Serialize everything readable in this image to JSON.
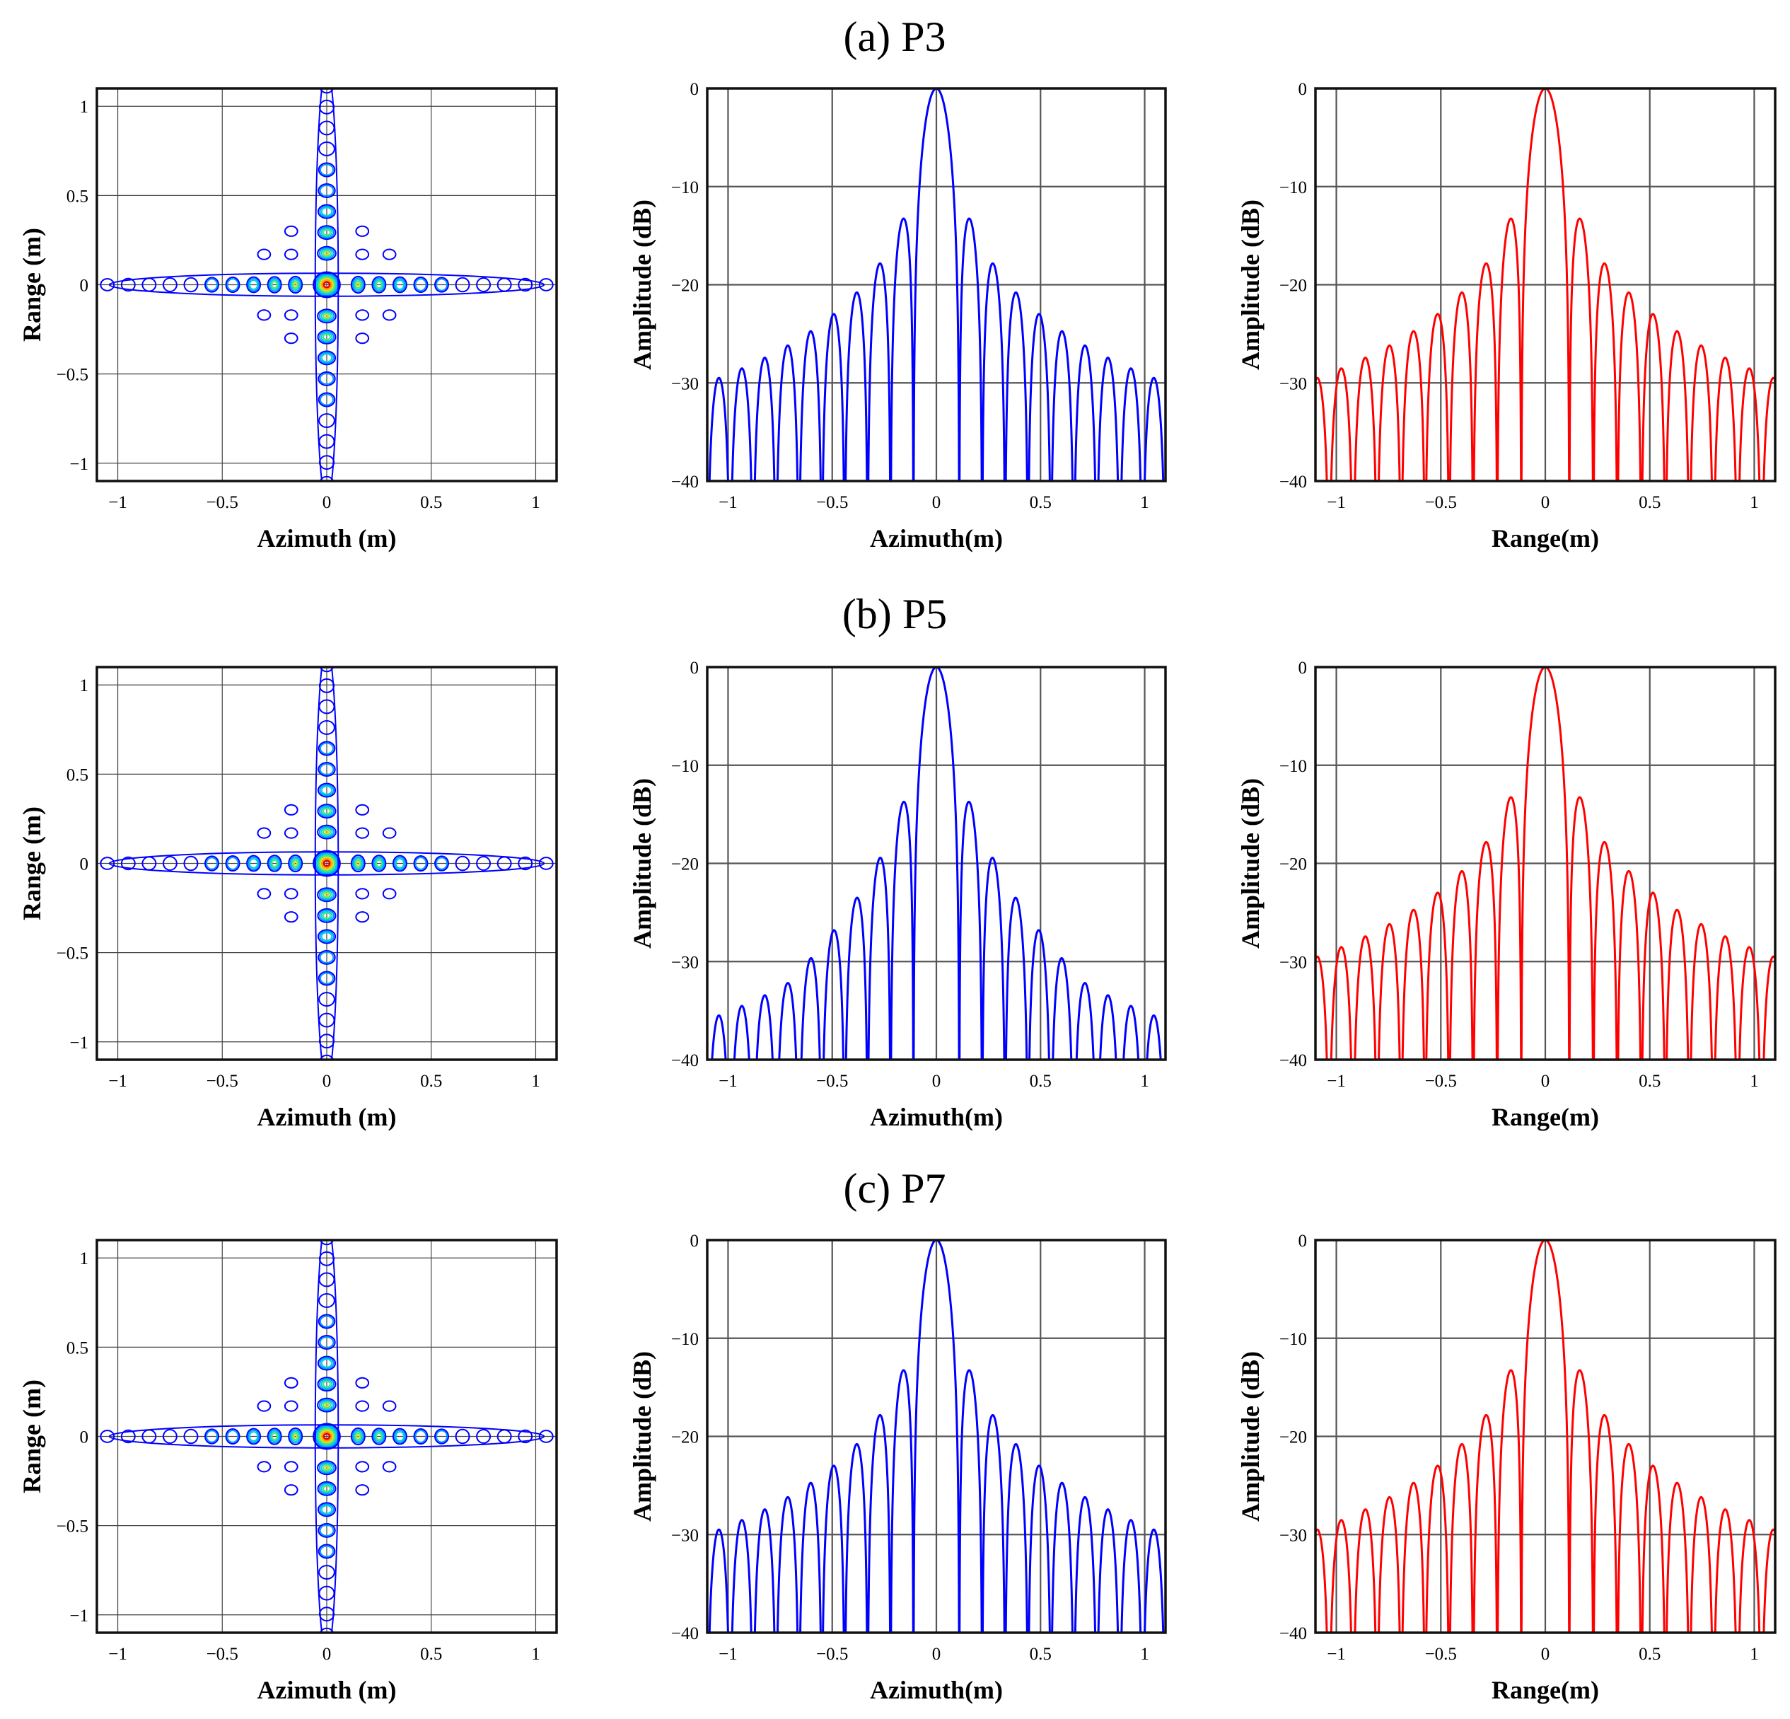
{
  "figure": {
    "rows": [
      {
        "title": "(a) P3"
      },
      {
        "title": "(b) P5"
      },
      {
        "title": "(c) P7"
      }
    ]
  },
  "colors": {
    "azimuth_profile": "#0000ff",
    "range_profile": "#ff0000",
    "contour_levels": [
      "#0000ff",
      "#0096ff",
      "#00d2dc",
      "#50e678",
      "#dcdc28",
      "#ffa000",
      "#e60000"
    ]
  },
  "chart_data": [
    {
      "type": "contour",
      "row": 0,
      "title": "(a) P3",
      "xlabel": "Azimuth (m)",
      "ylabel": "Range (m)",
      "xlim": [
        -1.1,
        1.1
      ],
      "ylim": [
        -1.1,
        1.1
      ],
      "xticks": [
        -1,
        -0.5,
        0,
        0.5,
        1
      ],
      "xticklabels": [
        "−1",
        "−0.5",
        "0",
        "0.5",
        "1"
      ],
      "yticks": [
        -1,
        -0.5,
        0,
        0.5,
        1
      ],
      "yticklabels": [
        "−1",
        "−0.5",
        "0",
        "0.5",
        "1"
      ],
      "peak": [
        0,
        0
      ],
      "mainlobe_width_m": 0.09,
      "grid": true
    },
    {
      "type": "line",
      "row": 0,
      "xlabel": "Azimuth(m)",
      "ylabel": "Amplitude (dB)",
      "xlim": [
        -1.1,
        1.1
      ],
      "ylim": [
        -40,
        0
      ],
      "xticks": [
        -1,
        -0.5,
        0,
        0.5,
        1
      ],
      "xticklabels": [
        "−1",
        "−0.5",
        "0",
        "0.5",
        "1"
      ],
      "yticks": [
        -40,
        -30,
        -20,
        -10,
        0
      ],
      "yticklabels": [
        "−40",
        "−30",
        "−20",
        "−10",
        "0"
      ],
      "series": [
        {
          "name": "azimuth",
          "profile": "sinc",
          "mainlobe_null_m": 0.11,
          "peak_db": 0,
          "floor_db": -40,
          "extra_drop_db": 0
        }
      ],
      "grid": true
    },
    {
      "type": "line",
      "row": 0,
      "xlabel": "Range(m)",
      "ylabel": "Amplitude (dB)",
      "xlim": [
        -1.1,
        1.1
      ],
      "ylim": [
        -40,
        0
      ],
      "xticks": [
        -1,
        -0.5,
        0,
        0.5,
        1
      ],
      "xticklabels": [
        "−1",
        "−0.5",
        "0",
        "0.5",
        "1"
      ],
      "yticks": [
        -40,
        -30,
        -20,
        -10,
        0
      ],
      "yticklabels": [
        "−40",
        "−30",
        "−20",
        "−10",
        "0"
      ],
      "series": [
        {
          "name": "range",
          "profile": "sinc",
          "mainlobe_null_m": 0.115,
          "peak_db": 0,
          "floor_db": -40,
          "extra_drop_db": 0
        }
      ],
      "grid": true
    },
    {
      "type": "contour",
      "row": 1,
      "title": "(b) P5",
      "xlabel": "Azimuth (m)",
      "ylabel": "Range (m)",
      "xlim": [
        -1.1,
        1.1
      ],
      "ylim": [
        -1.1,
        1.1
      ],
      "xticks": [
        -1,
        -0.5,
        0,
        0.5,
        1
      ],
      "xticklabels": [
        "−1",
        "−0.5",
        "0",
        "0.5",
        "1"
      ],
      "yticks": [
        -1,
        -0.5,
        0,
        0.5,
        1
      ],
      "yticklabels": [
        "−1",
        "−0.5",
        "0",
        "0.5",
        "1"
      ],
      "peak": [
        0,
        0
      ],
      "mainlobe_width_m": 0.09,
      "grid": true
    },
    {
      "type": "line",
      "row": 1,
      "xlabel": "Azimuth(m)",
      "ylabel": "Amplitude (dB)",
      "xlim": [
        -1.1,
        1.1
      ],
      "ylim": [
        -40,
        0
      ],
      "xticks": [
        -1,
        -0.5,
        0,
        0.5,
        1
      ],
      "xticklabels": [
        "−1",
        "−0.5",
        "0",
        "0.5",
        "1"
      ],
      "yticks": [
        -40,
        -30,
        -20,
        -10,
        0
      ],
      "yticklabels": [
        "−40",
        "−30",
        "−20",
        "−10",
        "0"
      ],
      "series": [
        {
          "name": "azimuth",
          "profile": "sinc",
          "mainlobe_null_m": 0.11,
          "peak_db": 0,
          "floor_db": -40,
          "extra_drop_db": 6
        }
      ],
      "grid": true
    },
    {
      "type": "line",
      "row": 1,
      "xlabel": "Range(m)",
      "ylabel": "Amplitude (dB)",
      "xlim": [
        -1.1,
        1.1
      ],
      "ylim": [
        -40,
        0
      ],
      "xticks": [
        -1,
        -0.5,
        0,
        0.5,
        1
      ],
      "xticklabels": [
        "−1",
        "−0.5",
        "0",
        "0.5",
        "1"
      ],
      "yticks": [
        -40,
        -30,
        -20,
        -10,
        0
      ],
      "yticklabels": [
        "−40",
        "−30",
        "−20",
        "−10",
        "0"
      ],
      "series": [
        {
          "name": "range",
          "profile": "sinc",
          "mainlobe_null_m": 0.115,
          "peak_db": 0,
          "floor_db": -40,
          "extra_drop_db": 0
        }
      ],
      "grid": true
    },
    {
      "type": "contour",
      "row": 2,
      "title": "(c) P7",
      "xlabel": "Azimuth (m)",
      "ylabel": "Range (m)",
      "xlim": [
        -1.1,
        1.1
      ],
      "ylim": [
        -1.1,
        1.1
      ],
      "xticks": [
        -1,
        -0.5,
        0,
        0.5,
        1
      ],
      "xticklabels": [
        "−1",
        "−0.5",
        "0",
        "0.5",
        "1"
      ],
      "yticks": [
        -1,
        -0.5,
        0,
        0.5,
        1
      ],
      "yticklabels": [
        "−1",
        "−0.5",
        "0",
        "0.5",
        "1"
      ],
      "peak": [
        0,
        0
      ],
      "mainlobe_width_m": 0.09,
      "grid": true
    },
    {
      "type": "line",
      "row": 2,
      "xlabel": "Azimuth(m)",
      "ylabel": "Amplitude (dB)",
      "xlim": [
        -1.1,
        1.1
      ],
      "ylim": [
        -40,
        0
      ],
      "xticks": [
        -1,
        -0.5,
        0,
        0.5,
        1
      ],
      "xticklabels": [
        "−1",
        "−0.5",
        "0",
        "0.5",
        "1"
      ],
      "yticks": [
        -40,
        -30,
        -20,
        -10,
        0
      ],
      "yticklabels": [
        "−40",
        "−30",
        "−20",
        "−10",
        "0"
      ],
      "series": [
        {
          "name": "azimuth",
          "profile": "sinc",
          "mainlobe_null_m": 0.11,
          "peak_db": 0,
          "floor_db": -40,
          "extra_drop_db": 0
        }
      ],
      "grid": true
    },
    {
      "type": "line",
      "row": 2,
      "xlabel": "Range(m)",
      "ylabel": "Amplitude (dB)",
      "xlim": [
        -1.1,
        1.1
      ],
      "ylim": [
        -40,
        0
      ],
      "xticks": [
        -1,
        -0.5,
        0,
        0.5,
        1
      ],
      "xticklabels": [
        "−1",
        "−0.5",
        "0",
        "0.5",
        "1"
      ],
      "yticks": [
        -40,
        -30,
        -20,
        -10,
        0
      ],
      "yticklabels": [
        "−40",
        "−30",
        "−20",
        "−10",
        "0"
      ],
      "series": [
        {
          "name": "range",
          "profile": "sinc",
          "mainlobe_null_m": 0.115,
          "peak_db": 0,
          "floor_db": -40,
          "extra_drop_db": 0
        }
      ],
      "grid": true
    }
  ]
}
